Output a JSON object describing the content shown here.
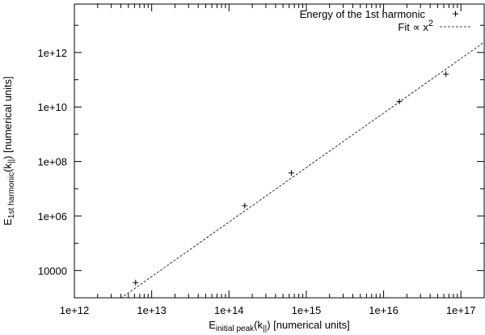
{
  "chart_data": {
    "type": "scatter",
    "xlabel": {
      "main": "E",
      "sub": "initial peak",
      "rest": "(k",
      "sub2": "||",
      "tail": ") [numerical units]"
    },
    "ylabel": {
      "main": "E",
      "sub": "1st harmonic",
      "rest": "(k",
      "sub2": "||",
      "tail": ") [numerical units]"
    },
    "x_scale": "log",
    "y_scale": "log",
    "xlim": [
      1000000000000.0,
      2e+17
    ],
    "ylim": [
      1000,
      60000000000000.0
    ],
    "x_ticks": [
      {
        "value": 1000000000000.0,
        "label": "1e+12"
      },
      {
        "value": 10000000000000.0,
        "label": "1e+13"
      },
      {
        "value": 100000000000000.0,
        "label": "1e+14"
      },
      {
        "value": 1000000000000000.0,
        "label": "1e+15"
      },
      {
        "value": 1e+16,
        "label": "1e+16"
      },
      {
        "value": 1e+17,
        "label": "1e+17"
      }
    ],
    "y_ticks": [
      {
        "value": 10000,
        "label": "10000"
      },
      {
        "value": 1000000.0,
        "label": "1e+06"
      },
      {
        "value": 100000000.0,
        "label": "1e+08"
      },
      {
        "value": 10000000000.0,
        "label": "1e+10"
      },
      {
        "value": 1000000000000.0,
        "label": "1e+12"
      }
    ],
    "series": [
      {
        "name": "Energy of the 1st harmonic",
        "marker": "plus",
        "color": "#000000",
        "points": [
          {
            "x": 6200000000000.0,
            "y": 3600.0
          },
          {
            "x": 160000000000000.0,
            "y": 2400000.0
          },
          {
            "x": 640000000000000.0,
            "y": 38000000.0
          },
          {
            "x": 1.6e+16,
            "y": 16000000000.0
          },
          {
            "x": 6.4e+16,
            "y": 160000000000.0
          }
        ]
      }
    ],
    "fit": {
      "name": "Fit ∝ x",
      "exponent_label": "2",
      "style": "dashed",
      "color": "#000000",
      "exponent": 2,
      "coefficient": 6e-23
    },
    "legend_placement": "top-right",
    "grid": false
  }
}
